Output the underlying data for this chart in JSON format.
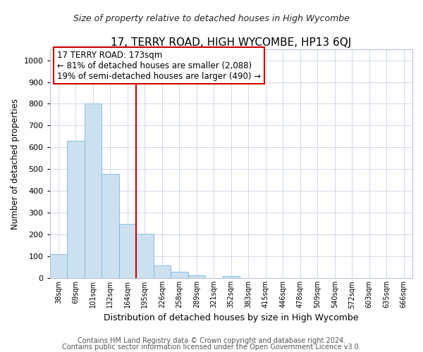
{
  "title": "17, TERRY ROAD, HIGH WYCOMBE, HP13 6QJ",
  "subtitle": "Size of property relative to detached houses in High Wycombe",
  "xlabel": "Distribution of detached houses by size in High Wycombe",
  "ylabel": "Number of detached properties",
  "bar_labels": [
    "38sqm",
    "69sqm",
    "101sqm",
    "132sqm",
    "164sqm",
    "195sqm",
    "226sqm",
    "258sqm",
    "289sqm",
    "321sqm",
    "352sqm",
    "383sqm",
    "415sqm",
    "446sqm",
    "478sqm",
    "509sqm",
    "540sqm",
    "572sqm",
    "603sqm",
    "635sqm",
    "666sqm"
  ],
  "bar_values": [
    110,
    630,
    800,
    480,
    250,
    205,
    60,
    30,
    15,
    0,
    10,
    0,
    0,
    0,
    0,
    0,
    0,
    0,
    0,
    0,
    0
  ],
  "bar_color": "#cce0f0",
  "bar_edge_color": "#7ab8d8",
  "vline_x_index": 4,
  "vline_color": "#cc0000",
  "annotation_line1": "17 TERRY ROAD: 173sqm",
  "annotation_line2": "← 81% of detached houses are smaller (2,088)",
  "annotation_line3": "19% of semi-detached houses are larger (490) →",
  "annotation_box_color": "#ffffff",
  "annotation_box_edge_color": "#cc0000",
  "ylim": [
    0,
    1050
  ],
  "yticks": [
    0,
    100,
    200,
    300,
    400,
    500,
    600,
    700,
    800,
    900,
    1000
  ],
  "grid_color": "#d0d8e8",
  "footer_line1": "Contains HM Land Registry data © Crown copyright and database right 2024.",
  "footer_line2": "Contains public sector information licensed under the Open Government Licence v3.0.",
  "title_fontsize": 11,
  "subtitle_fontsize": 9,
  "annotation_fontsize": 8.5,
  "footer_fontsize": 7,
  "xlabel_fontsize": 9,
  "ylabel_fontsize": 8.5
}
